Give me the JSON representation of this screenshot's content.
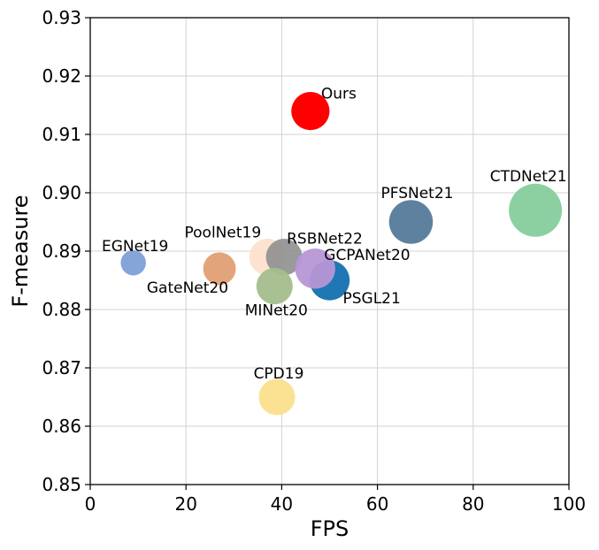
{
  "chart_data": {
    "type": "scatter",
    "title": "",
    "xlabel": "FPS",
    "ylabel": "F-measure",
    "xlim": [
      0,
      100
    ],
    "ylim": [
      0.85,
      0.93
    ],
    "xticks": [
      "0",
      "20",
      "40",
      "60",
      "80",
      "100"
    ],
    "yticks": [
      "0.85",
      "0.86",
      "0.87",
      "0.88",
      "0.89",
      "0.90",
      "0.91",
      "0.92",
      "0.93"
    ],
    "grid": true,
    "points": [
      {
        "name": "EGNet19",
        "x": 9,
        "y": 0.888,
        "color": "#7d9fd8",
        "opacity": 0.95,
        "size": 0.25
      },
      {
        "name": "GateNet20",
        "x": 27,
        "y": 0.887,
        "color": "#e0a074",
        "opacity": 0.95,
        "size": 0.45
      },
      {
        "name": "PoolNet19",
        "x": 37,
        "y": 0.889,
        "color": "#fde1cc",
        "opacity": 0.95,
        "size": 0.55
      },
      {
        "name": "RSBNet22",
        "x": 40.5,
        "y": 0.889,
        "color": "#8f8f8f",
        "opacity": 0.9,
        "size": 0.55
      },
      {
        "name": "MINet20",
        "x": 38.5,
        "y": 0.884,
        "color": "#a4be8c",
        "opacity": 0.95,
        "size": 0.55
      },
      {
        "name": "CPD19",
        "x": 39,
        "y": 0.865,
        "color": "#fbe08c",
        "opacity": 0.95,
        "size": 0.55
      },
      {
        "name": "PSGL21",
        "x": 50,
        "y": 0.885,
        "color": "#1f77b4",
        "opacity": 1.0,
        "size": 0.65
      },
      {
        "name": "GCPANet20",
        "x": 47,
        "y": 0.887,
        "color": "#b796d6",
        "opacity": 0.95,
        "size": 0.65
      },
      {
        "name": "Ours",
        "x": 46,
        "y": 0.914,
        "color": "#ff0000",
        "opacity": 1.0,
        "size": 0.6
      },
      {
        "name": "PFSNet21",
        "x": 67,
        "y": 0.895,
        "color": "#557a9b",
        "opacity": 0.95,
        "size": 0.75
      },
      {
        "name": "CTDNet21",
        "x": 93,
        "y": 0.897,
        "color": "#86cd9c",
        "opacity": 0.95,
        "size": 1.0
      }
    ]
  }
}
